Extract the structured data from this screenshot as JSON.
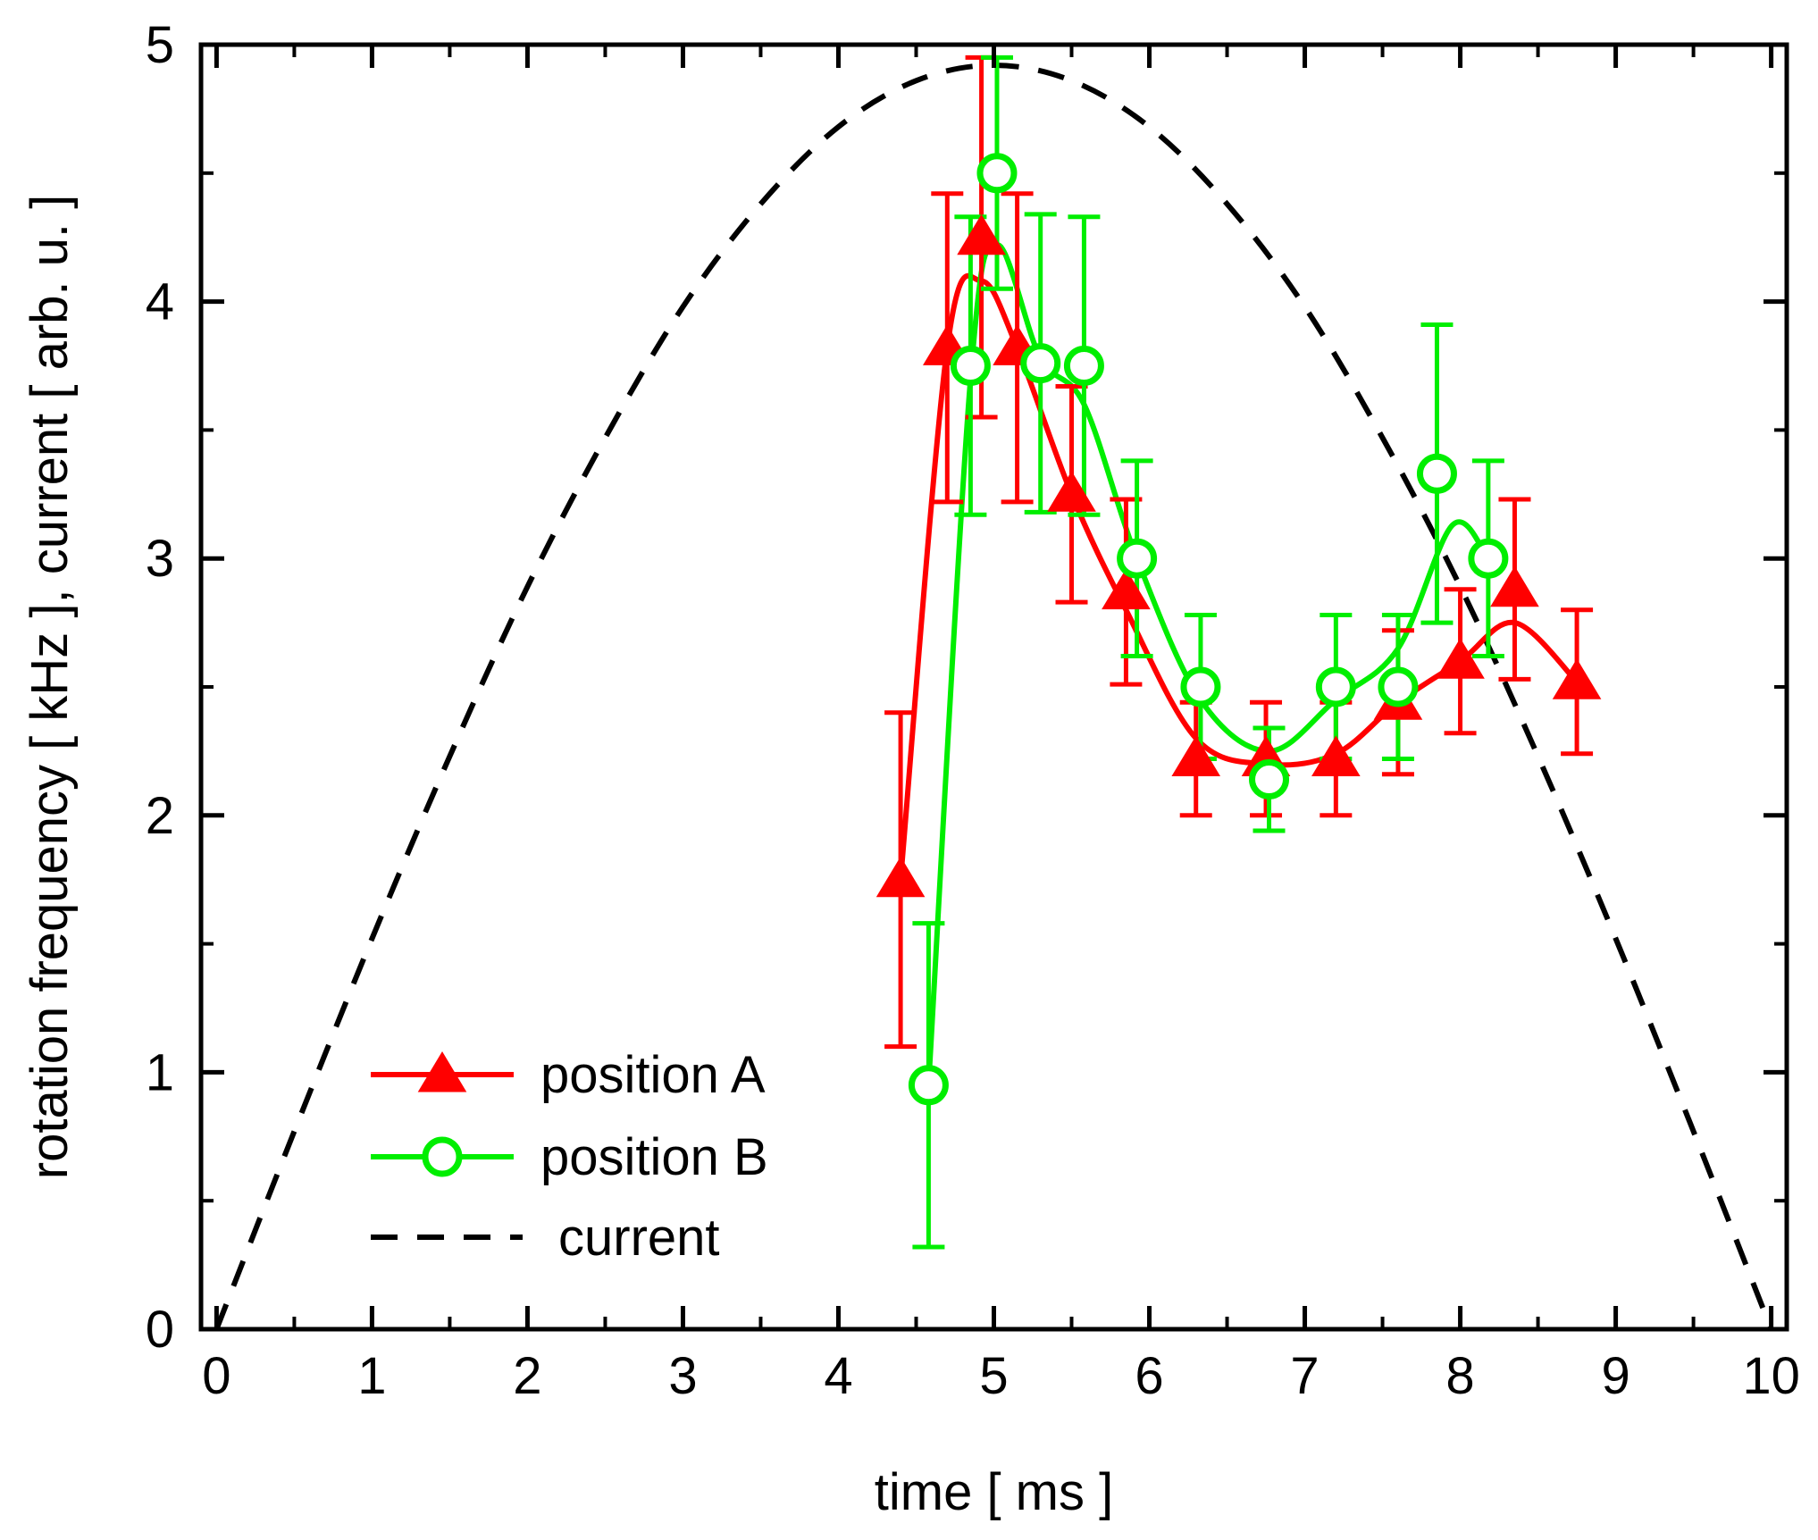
{
  "chart_data": {
    "type": "line",
    "title": "",
    "xlabel": "time [ ms ]",
    "ylabel": "rotation frequency [ kHz ], current [ arb. u. ]",
    "xlim": [
      -0.1,
      10.1
    ],
    "ylim": [
      0,
      5
    ],
    "x_ticks": [
      "0",
      "1",
      "2",
      "3",
      "4",
      "5",
      "6",
      "7",
      "8",
      "9",
      "10"
    ],
    "y_ticks": [
      "0",
      "1",
      "2",
      "3",
      "4",
      "5"
    ],
    "legend_position": "bottom-left",
    "series": [
      {
        "name": "position A",
        "color": "#ff0000",
        "marker": "triangle",
        "x": [
          4.4,
          4.7,
          4.92,
          5.15,
          5.5,
          5.85,
          6.3,
          6.75,
          7.2,
          7.6,
          8.0,
          8.35,
          8.75
        ],
        "y": [
          1.75,
          3.82,
          4.25,
          3.82,
          3.25,
          2.87,
          2.22,
          2.22,
          2.22,
          2.44,
          2.6,
          2.88,
          2.52
        ],
        "err": [
          0.65,
          0.6,
          0.7,
          0.6,
          0.42,
          0.36,
          0.22,
          0.22,
          0.22,
          0.28,
          0.28,
          0.35,
          0.28
        ],
        "fit_x": [
          4.4,
          4.7,
          4.92,
          5.15,
          5.5,
          5.85,
          6.3,
          6.75,
          7.2,
          7.6,
          8.0,
          8.35,
          8.75
        ],
        "fit_y": [
          1.75,
          3.82,
          4.08,
          3.82,
          3.25,
          2.8,
          2.3,
          2.2,
          2.24,
          2.44,
          2.6,
          2.75,
          2.52
        ]
      },
      {
        "name": "position B",
        "color": "#00ee00",
        "marker": "circle",
        "x": [
          4.58,
          4.85,
          5.02,
          5.3,
          5.58,
          5.92,
          6.33,
          6.77,
          7.2,
          7.6,
          7.85,
          8.18
        ],
        "y": [
          0.95,
          3.75,
          4.5,
          3.76,
          3.75,
          3.0,
          2.5,
          2.14,
          2.5,
          2.5,
          3.33,
          3.0
        ],
        "err": [
          0.63,
          0.58,
          0.45,
          0.58,
          0.58,
          0.38,
          0.28,
          0.2,
          0.28,
          0.28,
          0.58,
          0.38
        ],
        "fit_x": [
          4.58,
          4.85,
          5.02,
          5.3,
          5.58,
          5.92,
          6.33,
          6.77,
          7.2,
          7.6,
          7.95,
          8.18
        ],
        "fit_y": [
          0.95,
          3.7,
          4.22,
          3.78,
          3.6,
          3.0,
          2.45,
          2.25,
          2.45,
          2.65,
          3.13,
          3.0
        ]
      },
      {
        "name": "current",
        "color": "#000000",
        "style": "dashed",
        "x": [
          0.0,
          0.5,
          1.0,
          1.5,
          2.0,
          2.5,
          3.0,
          3.5,
          4.0,
          4.5,
          5.0,
          5.5,
          6.0,
          6.5,
          7.0,
          7.5,
          8.0,
          8.5,
          9.0,
          9.5,
          10.0
        ],
        "y": [
          0.0,
          0.77,
          1.52,
          2.23,
          2.89,
          3.47,
          3.98,
          4.38,
          4.68,
          4.86,
          4.92,
          4.86,
          4.68,
          4.38,
          3.98,
          3.47,
          2.89,
          2.23,
          1.52,
          0.77,
          0.0
        ]
      }
    ]
  }
}
